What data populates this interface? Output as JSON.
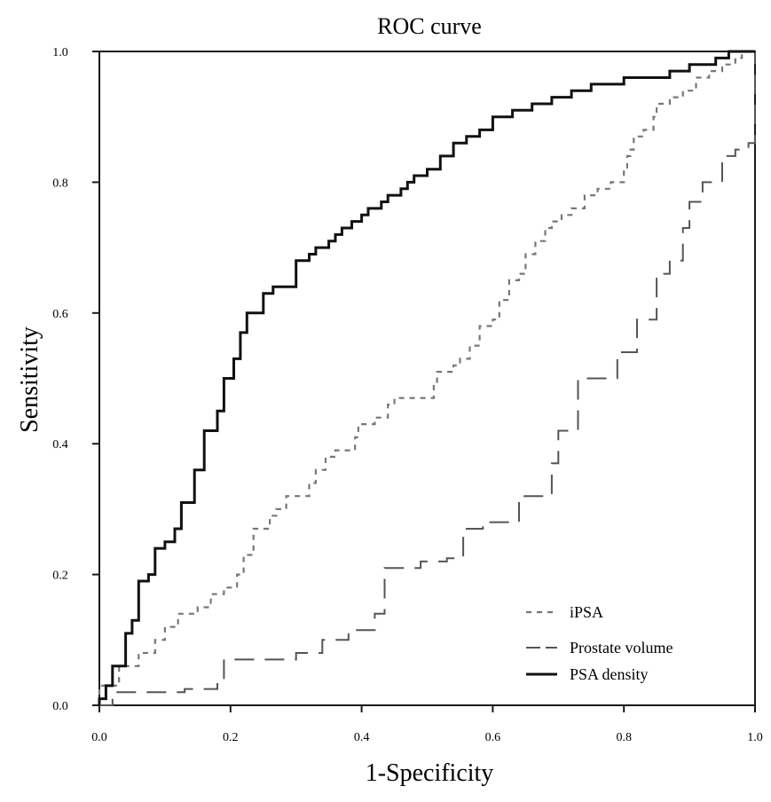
{
  "chart_data": {
    "type": "line",
    "title": "ROC curve",
    "xlabel": "1-Specificity",
    "ylabel": "Sensitivity",
    "xlim": [
      0,
      1
    ],
    "ylim": [
      0,
      1
    ],
    "x_tick_labels": [
      "0.0",
      "0.2",
      "0.4",
      "0.6",
      "0.8",
      "1.0"
    ],
    "y_tick_labels": [
      "0.0",
      "0.2",
      "0.4",
      "0.6",
      "0.8",
      "1.0"
    ],
    "grid": false,
    "legend_position": "bottom-right",
    "series": [
      {
        "name": "iPSA",
        "style": "short-dash",
        "color": "#777777",
        "points": [
          [
            0.0,
            0.0
          ],
          [
            0.0,
            0.03
          ],
          [
            0.03,
            0.03
          ],
          [
            0.03,
            0.06
          ],
          [
            0.06,
            0.06
          ],
          [
            0.06,
            0.08
          ],
          [
            0.085,
            0.08
          ],
          [
            0.085,
            0.1
          ],
          [
            0.1,
            0.1
          ],
          [
            0.1,
            0.12
          ],
          [
            0.12,
            0.12
          ],
          [
            0.12,
            0.14
          ],
          [
            0.15,
            0.14
          ],
          [
            0.15,
            0.15
          ],
          [
            0.17,
            0.15
          ],
          [
            0.17,
            0.17
          ],
          [
            0.19,
            0.17
          ],
          [
            0.19,
            0.18
          ],
          [
            0.21,
            0.18
          ],
          [
            0.21,
            0.2
          ],
          [
            0.22,
            0.2
          ],
          [
            0.22,
            0.23
          ],
          [
            0.235,
            0.23
          ],
          [
            0.235,
            0.27
          ],
          [
            0.26,
            0.27
          ],
          [
            0.26,
            0.29
          ],
          [
            0.27,
            0.29
          ],
          [
            0.27,
            0.3
          ],
          [
            0.285,
            0.3
          ],
          [
            0.285,
            0.32
          ],
          [
            0.32,
            0.32
          ],
          [
            0.32,
            0.34
          ],
          [
            0.33,
            0.34
          ],
          [
            0.33,
            0.36
          ],
          [
            0.345,
            0.36
          ],
          [
            0.345,
            0.38
          ],
          [
            0.36,
            0.38
          ],
          [
            0.36,
            0.39
          ],
          [
            0.39,
            0.39
          ],
          [
            0.39,
            0.41
          ],
          [
            0.395,
            0.41
          ],
          [
            0.395,
            0.43
          ],
          [
            0.42,
            0.43
          ],
          [
            0.42,
            0.44
          ],
          [
            0.44,
            0.44
          ],
          [
            0.44,
            0.46
          ],
          [
            0.45,
            0.46
          ],
          [
            0.45,
            0.47
          ],
          [
            0.51,
            0.47
          ],
          [
            0.51,
            0.49
          ],
          [
            0.515,
            0.49
          ],
          [
            0.515,
            0.51
          ],
          [
            0.54,
            0.51
          ],
          [
            0.54,
            0.52
          ],
          [
            0.55,
            0.52
          ],
          [
            0.55,
            0.53
          ],
          [
            0.565,
            0.53
          ],
          [
            0.565,
            0.55
          ],
          [
            0.58,
            0.55
          ],
          [
            0.58,
            0.58
          ],
          [
            0.6,
            0.58
          ],
          [
            0.6,
            0.59
          ],
          [
            0.61,
            0.59
          ],
          [
            0.61,
            0.62
          ],
          [
            0.625,
            0.62
          ],
          [
            0.625,
            0.65
          ],
          [
            0.64,
            0.65
          ],
          [
            0.64,
            0.66
          ],
          [
            0.65,
            0.66
          ],
          [
            0.65,
            0.69
          ],
          [
            0.665,
            0.69
          ],
          [
            0.665,
            0.71
          ],
          [
            0.68,
            0.71
          ],
          [
            0.68,
            0.73
          ],
          [
            0.69,
            0.73
          ],
          [
            0.69,
            0.74
          ],
          [
            0.705,
            0.74
          ],
          [
            0.705,
            0.75
          ],
          [
            0.72,
            0.75
          ],
          [
            0.72,
            0.76
          ],
          [
            0.74,
            0.76
          ],
          [
            0.74,
            0.78
          ],
          [
            0.76,
            0.78
          ],
          [
            0.76,
            0.79
          ],
          [
            0.78,
            0.79
          ],
          [
            0.78,
            0.8
          ],
          [
            0.8,
            0.8
          ],
          [
            0.8,
            0.82
          ],
          [
            0.805,
            0.82
          ],
          [
            0.805,
            0.84
          ],
          [
            0.81,
            0.84
          ],
          [
            0.81,
            0.85
          ],
          [
            0.815,
            0.85
          ],
          [
            0.815,
            0.87
          ],
          [
            0.83,
            0.87
          ],
          [
            0.83,
            0.88
          ],
          [
            0.845,
            0.88
          ],
          [
            0.845,
            0.9
          ],
          [
            0.85,
            0.9
          ],
          [
            0.85,
            0.92
          ],
          [
            0.85,
            0.92
          ],
          [
            0.85,
            0.92
          ],
          [
            0.87,
            0.92
          ],
          [
            0.87,
            0.93
          ],
          [
            0.89,
            0.93
          ],
          [
            0.89,
            0.94
          ],
          [
            0.91,
            0.94
          ],
          [
            0.91,
            0.96
          ],
          [
            0.93,
            0.96
          ],
          [
            0.93,
            0.97
          ],
          [
            0.95,
            0.97
          ],
          [
            0.95,
            0.98
          ],
          [
            0.97,
            0.98
          ],
          [
            0.97,
            0.99
          ],
          [
            0.98,
            0.99
          ],
          [
            0.98,
            1.0
          ],
          [
            1.0,
            1.0
          ]
        ]
      },
      {
        "name": "Prostate volume",
        "style": "long-dash",
        "color": "#555555",
        "points": [
          [
            0.0,
            0.0
          ],
          [
            0.02,
            0.0
          ],
          [
            0.02,
            0.02
          ],
          [
            0.13,
            0.02
          ],
          [
            0.13,
            0.025
          ],
          [
            0.18,
            0.025
          ],
          [
            0.18,
            0.04
          ],
          [
            0.19,
            0.04
          ],
          [
            0.19,
            0.07
          ],
          [
            0.3,
            0.07
          ],
          [
            0.3,
            0.08
          ],
          [
            0.34,
            0.08
          ],
          [
            0.34,
            0.1
          ],
          [
            0.38,
            0.1
          ],
          [
            0.38,
            0.115
          ],
          [
            0.42,
            0.115
          ],
          [
            0.42,
            0.14
          ],
          [
            0.435,
            0.14
          ],
          [
            0.435,
            0.21
          ],
          [
            0.49,
            0.21
          ],
          [
            0.49,
            0.22
          ],
          [
            0.53,
            0.22
          ],
          [
            0.53,
            0.225
          ],
          [
            0.555,
            0.225
          ],
          [
            0.555,
            0.27
          ],
          [
            0.585,
            0.27
          ],
          [
            0.585,
            0.28
          ],
          [
            0.64,
            0.28
          ],
          [
            0.64,
            0.32
          ],
          [
            0.69,
            0.32
          ],
          [
            0.69,
            0.37
          ],
          [
            0.7,
            0.37
          ],
          [
            0.7,
            0.42
          ],
          [
            0.73,
            0.42
          ],
          [
            0.73,
            0.5
          ],
          [
            0.79,
            0.5
          ],
          [
            0.79,
            0.54
          ],
          [
            0.82,
            0.54
          ],
          [
            0.82,
            0.59
          ],
          [
            0.85,
            0.59
          ],
          [
            0.85,
            0.66
          ],
          [
            0.87,
            0.66
          ],
          [
            0.87,
            0.68
          ],
          [
            0.89,
            0.68
          ],
          [
            0.89,
            0.73
          ],
          [
            0.9,
            0.73
          ],
          [
            0.9,
            0.77
          ],
          [
            0.92,
            0.77
          ],
          [
            0.92,
            0.8
          ],
          [
            0.95,
            0.8
          ],
          [
            0.95,
            0.84
          ],
          [
            0.97,
            0.84
          ],
          [
            0.97,
            0.85
          ],
          [
            0.99,
            0.85
          ],
          [
            0.99,
            0.86
          ],
          [
            1.0,
            0.86
          ],
          [
            1.0,
            1.0
          ]
        ]
      },
      {
        "name": "PSA density",
        "style": "solid",
        "color": "#111111",
        "points": [
          [
            0.0,
            0.0
          ],
          [
            0.0,
            0.01
          ],
          [
            0.01,
            0.01
          ],
          [
            0.01,
            0.03
          ],
          [
            0.02,
            0.03
          ],
          [
            0.02,
            0.06
          ],
          [
            0.04,
            0.06
          ],
          [
            0.04,
            0.11
          ],
          [
            0.05,
            0.11
          ],
          [
            0.05,
            0.13
          ],
          [
            0.06,
            0.13
          ],
          [
            0.06,
            0.19
          ],
          [
            0.075,
            0.19
          ],
          [
            0.075,
            0.2
          ],
          [
            0.085,
            0.2
          ],
          [
            0.085,
            0.24
          ],
          [
            0.1,
            0.24
          ],
          [
            0.1,
            0.25
          ],
          [
            0.115,
            0.25
          ],
          [
            0.115,
            0.27
          ],
          [
            0.125,
            0.27
          ],
          [
            0.125,
            0.31
          ],
          [
            0.145,
            0.31
          ],
          [
            0.145,
            0.36
          ],
          [
            0.16,
            0.36
          ],
          [
            0.16,
            0.42
          ],
          [
            0.18,
            0.42
          ],
          [
            0.18,
            0.45
          ],
          [
            0.19,
            0.45
          ],
          [
            0.19,
            0.5
          ],
          [
            0.205,
            0.5
          ],
          [
            0.205,
            0.53
          ],
          [
            0.215,
            0.53
          ],
          [
            0.215,
            0.57
          ],
          [
            0.225,
            0.57
          ],
          [
            0.225,
            0.6
          ],
          [
            0.25,
            0.6
          ],
          [
            0.25,
            0.63
          ],
          [
            0.265,
            0.63
          ],
          [
            0.265,
            0.64
          ],
          [
            0.3,
            0.64
          ],
          [
            0.3,
            0.68
          ],
          [
            0.32,
            0.68
          ],
          [
            0.32,
            0.69
          ],
          [
            0.33,
            0.69
          ],
          [
            0.33,
            0.7
          ],
          [
            0.35,
            0.7
          ],
          [
            0.35,
            0.71
          ],
          [
            0.36,
            0.71
          ],
          [
            0.36,
            0.72
          ],
          [
            0.37,
            0.72
          ],
          [
            0.37,
            0.73
          ],
          [
            0.385,
            0.73
          ],
          [
            0.385,
            0.74
          ],
          [
            0.4,
            0.74
          ],
          [
            0.4,
            0.75
          ],
          [
            0.41,
            0.75
          ],
          [
            0.41,
            0.76
          ],
          [
            0.43,
            0.76
          ],
          [
            0.43,
            0.77
          ],
          [
            0.44,
            0.77
          ],
          [
            0.44,
            0.78
          ],
          [
            0.46,
            0.78
          ],
          [
            0.46,
            0.79
          ],
          [
            0.47,
            0.79
          ],
          [
            0.47,
            0.8
          ],
          [
            0.48,
            0.8
          ],
          [
            0.48,
            0.81
          ],
          [
            0.5,
            0.81
          ],
          [
            0.5,
            0.82
          ],
          [
            0.52,
            0.82
          ],
          [
            0.52,
            0.84
          ],
          [
            0.54,
            0.84
          ],
          [
            0.54,
            0.86
          ],
          [
            0.56,
            0.86
          ],
          [
            0.56,
            0.87
          ],
          [
            0.58,
            0.87
          ],
          [
            0.58,
            0.88
          ],
          [
            0.6,
            0.88
          ],
          [
            0.6,
            0.9
          ],
          [
            0.63,
            0.9
          ],
          [
            0.63,
            0.91
          ],
          [
            0.66,
            0.91
          ],
          [
            0.66,
            0.92
          ],
          [
            0.69,
            0.92
          ],
          [
            0.69,
            0.93
          ],
          [
            0.72,
            0.93
          ],
          [
            0.72,
            0.94
          ],
          [
            0.75,
            0.94
          ],
          [
            0.75,
            0.95
          ],
          [
            0.8,
            0.95
          ],
          [
            0.8,
            0.96
          ],
          [
            0.87,
            0.96
          ],
          [
            0.87,
            0.97
          ],
          [
            0.9,
            0.97
          ],
          [
            0.9,
            0.98
          ],
          [
            0.94,
            0.98
          ],
          [
            0.94,
            0.99
          ],
          [
            0.96,
            0.99
          ],
          [
            0.96,
            1.0
          ],
          [
            1.0,
            1.0
          ]
        ]
      }
    ]
  }
}
